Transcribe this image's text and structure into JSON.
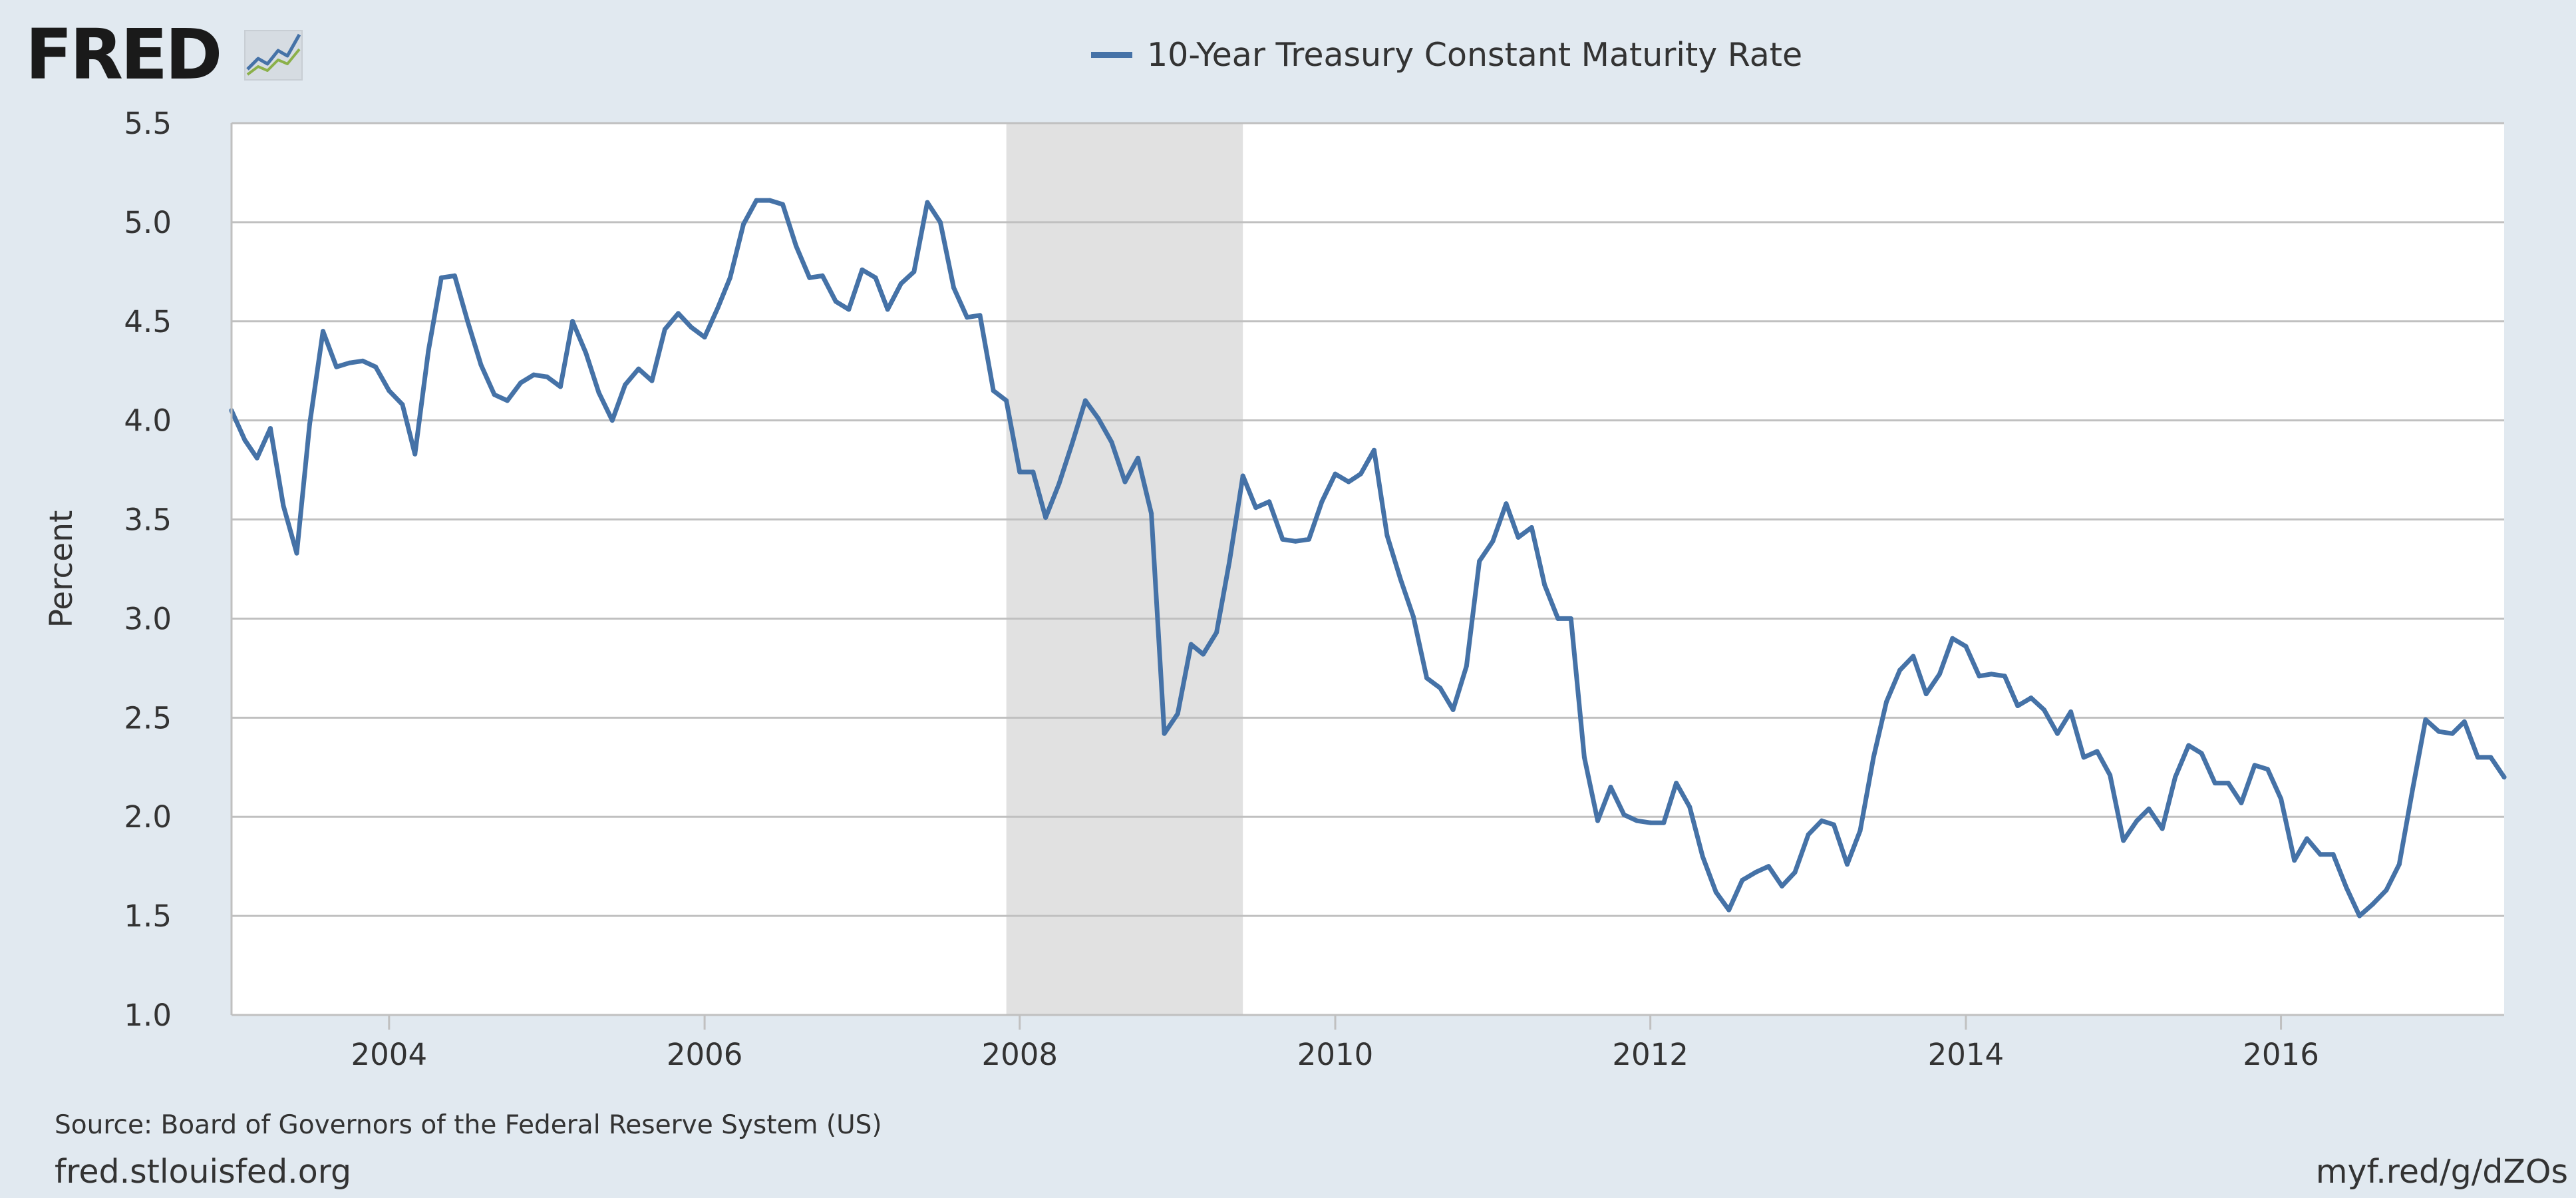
{
  "header": {
    "logo_text": "FRED",
    "logo_icon": "line-chart-icon"
  },
  "footer": {
    "source": "Source: Board of Governors of the Federal Reserve System (US)",
    "site": "fred.stlouisfed.org",
    "short_link": "myf.red/g/dZOs"
  },
  "colors": {
    "background": "#e1e9f0",
    "plot_background": "#ffffff",
    "series": "#4572a7",
    "recession": "#e1e1e1",
    "grid": "#c0c0c0"
  },
  "chart_data": {
    "type": "line",
    "title": "",
    "xlabel": "",
    "ylabel": "Percent",
    "xlim": [
      "2003-01-01",
      "2017-06-01"
    ],
    "ylim": [
      1.0,
      5.5
    ],
    "yticks": [
      1.0,
      1.5,
      2.0,
      2.5,
      3.0,
      3.5,
      4.0,
      4.5,
      5.0,
      5.5
    ],
    "ytick_labels": [
      "1.0",
      "1.5",
      "2.0",
      "2.5",
      "3.0",
      "3.5",
      "4.0",
      "4.5",
      "5.0",
      "5.5"
    ],
    "xticks": [
      "2004-01-01",
      "2006-01-01",
      "2008-01-01",
      "2010-01-01",
      "2012-01-01",
      "2014-01-01",
      "2016-01-01"
    ],
    "xtick_labels": [
      "2004",
      "2006",
      "2008",
      "2010",
      "2012",
      "2014",
      "2016"
    ],
    "grid": true,
    "legend_position": "top-center",
    "recession_shading": [
      {
        "start": "2007-12-01",
        "end": "2009-06-01"
      }
    ],
    "series": [
      {
        "name": "10-Year Treasury Constant Maturity Rate",
        "x": [
          "2003-01-01",
          "2003-02-01",
          "2003-03-01",
          "2003-04-01",
          "2003-05-01",
          "2003-06-01",
          "2003-07-01",
          "2003-08-01",
          "2003-09-01",
          "2003-10-01",
          "2003-11-01",
          "2003-12-01",
          "2004-01-01",
          "2004-02-01",
          "2004-03-01",
          "2004-04-01",
          "2004-05-01",
          "2004-06-01",
          "2004-07-01",
          "2004-08-01",
          "2004-09-01",
          "2004-10-01",
          "2004-11-01",
          "2004-12-01",
          "2005-01-01",
          "2005-02-01",
          "2005-03-01",
          "2005-04-01",
          "2005-05-01",
          "2005-06-01",
          "2005-07-01",
          "2005-08-01",
          "2005-09-01",
          "2005-10-01",
          "2005-11-01",
          "2005-12-01",
          "2006-01-01",
          "2006-02-01",
          "2006-03-01",
          "2006-04-01",
          "2006-05-01",
          "2006-06-01",
          "2006-07-01",
          "2006-08-01",
          "2006-09-01",
          "2006-10-01",
          "2006-11-01",
          "2006-12-01",
          "2007-01-01",
          "2007-02-01",
          "2007-03-01",
          "2007-04-01",
          "2007-05-01",
          "2007-06-01",
          "2007-07-01",
          "2007-08-01",
          "2007-09-01",
          "2007-10-01",
          "2007-11-01",
          "2007-12-01",
          "2008-01-01",
          "2008-02-01",
          "2008-03-01",
          "2008-04-01",
          "2008-05-01",
          "2008-06-01",
          "2008-07-01",
          "2008-08-01",
          "2008-09-01",
          "2008-10-01",
          "2008-11-01",
          "2008-12-01",
          "2009-01-01",
          "2009-02-01",
          "2009-03-01",
          "2009-04-01",
          "2009-05-01",
          "2009-06-01",
          "2009-07-01",
          "2009-08-01",
          "2009-09-01",
          "2009-10-01",
          "2009-11-01",
          "2009-12-01",
          "2010-01-01",
          "2010-02-01",
          "2010-03-01",
          "2010-04-01",
          "2010-05-01",
          "2010-06-01",
          "2010-07-01",
          "2010-08-01",
          "2010-09-01",
          "2010-10-01",
          "2010-11-01",
          "2010-12-01",
          "2011-01-01",
          "2011-02-01",
          "2011-03-01",
          "2011-04-01",
          "2011-05-01",
          "2011-06-01",
          "2011-07-01",
          "2011-08-01",
          "2011-09-01",
          "2011-10-01",
          "2011-11-01",
          "2011-12-01",
          "2012-01-01",
          "2012-02-01",
          "2012-03-01",
          "2012-04-01",
          "2012-05-01",
          "2012-06-01",
          "2012-07-01",
          "2012-08-01",
          "2012-09-01",
          "2012-10-01",
          "2012-11-01",
          "2012-12-01",
          "2013-01-01",
          "2013-02-01",
          "2013-03-01",
          "2013-04-01",
          "2013-05-01",
          "2013-06-01",
          "2013-07-01",
          "2013-08-01",
          "2013-09-01",
          "2013-10-01",
          "2013-11-01",
          "2013-12-01",
          "2014-01-01",
          "2014-02-01",
          "2014-03-01",
          "2014-04-01",
          "2014-05-01",
          "2014-06-01",
          "2014-07-01",
          "2014-08-01",
          "2014-09-01",
          "2014-10-01",
          "2014-11-01",
          "2014-12-01",
          "2015-01-01",
          "2015-02-01",
          "2015-03-01",
          "2015-04-01",
          "2015-05-01",
          "2015-06-01",
          "2015-07-01",
          "2015-08-01",
          "2015-09-01",
          "2015-10-01",
          "2015-11-01",
          "2015-12-01",
          "2016-01-01",
          "2016-02-01",
          "2016-03-01",
          "2016-04-01",
          "2016-05-01",
          "2016-06-01",
          "2016-07-01",
          "2016-08-01",
          "2016-09-01",
          "2016-10-01",
          "2016-11-01",
          "2016-12-01",
          "2017-01-01",
          "2017-02-01",
          "2017-03-01",
          "2017-04-01",
          "2017-05-01",
          "2017-06-01"
        ],
        "values": [
          4.05,
          3.9,
          3.81,
          3.96,
          3.57,
          3.33,
          3.98,
          4.45,
          4.27,
          4.29,
          4.3,
          4.27,
          4.15,
          4.08,
          3.83,
          4.35,
          4.72,
          4.73,
          4.5,
          4.28,
          4.13,
          4.1,
          4.19,
          4.23,
          4.22,
          4.17,
          4.5,
          4.34,
          4.14,
          4.0,
          4.18,
          4.26,
          4.2,
          4.46,
          4.54,
          4.47,
          4.42,
          4.57,
          4.72,
          4.99,
          5.11,
          5.11,
          5.09,
          4.88,
          4.72,
          4.73,
          4.6,
          4.56,
          4.76,
          4.72,
          4.56,
          4.69,
          4.75,
          5.1,
          5.0,
          4.67,
          4.52,
          4.53,
          4.15,
          4.1,
          3.74,
          3.74,
          3.51,
          3.68,
          3.88,
          4.1,
          4.01,
          3.89,
          3.69,
          3.81,
          3.53,
          2.42,
          2.52,
          2.87,
          2.82,
          2.93,
          3.29,
          3.72,
          3.56,
          3.59,
          3.4,
          3.39,
          3.4,
          3.59,
          3.73,
          3.69,
          3.73,
          3.85,
          3.42,
          3.2,
          3.01,
          2.7,
          2.65,
          2.54,
          2.76,
          3.29,
          3.39,
          3.58,
          3.41,
          3.46,
          3.17,
          3.0,
          3.0,
          2.3,
          1.98,
          2.15,
          2.01,
          1.98,
          1.97,
          1.97,
          2.17,
          2.05,
          1.8,
          1.62,
          1.53,
          1.68,
          1.72,
          1.75,
          1.65,
          1.72,
          1.91,
          1.98,
          1.96,
          1.76,
          1.93,
          2.3,
          2.58,
          2.74,
          2.81,
          2.62,
          2.72,
          2.9,
          2.86,
          2.71,
          2.72,
          2.71,
          2.56,
          2.6,
          2.54,
          2.42,
          2.53,
          2.3,
          2.33,
          2.21,
          1.88,
          1.98,
          2.04,
          1.94,
          2.2,
          2.36,
          2.32,
          2.17,
          2.17,
          2.07,
          2.26,
          2.24,
          2.09,
          1.78,
          1.89,
          1.81,
          1.81,
          1.64,
          1.5,
          1.56,
          1.63,
          1.76,
          2.14,
          2.49,
          2.43,
          2.42,
          2.48,
          2.3,
          2.3,
          2.2
        ]
      }
    ]
  }
}
